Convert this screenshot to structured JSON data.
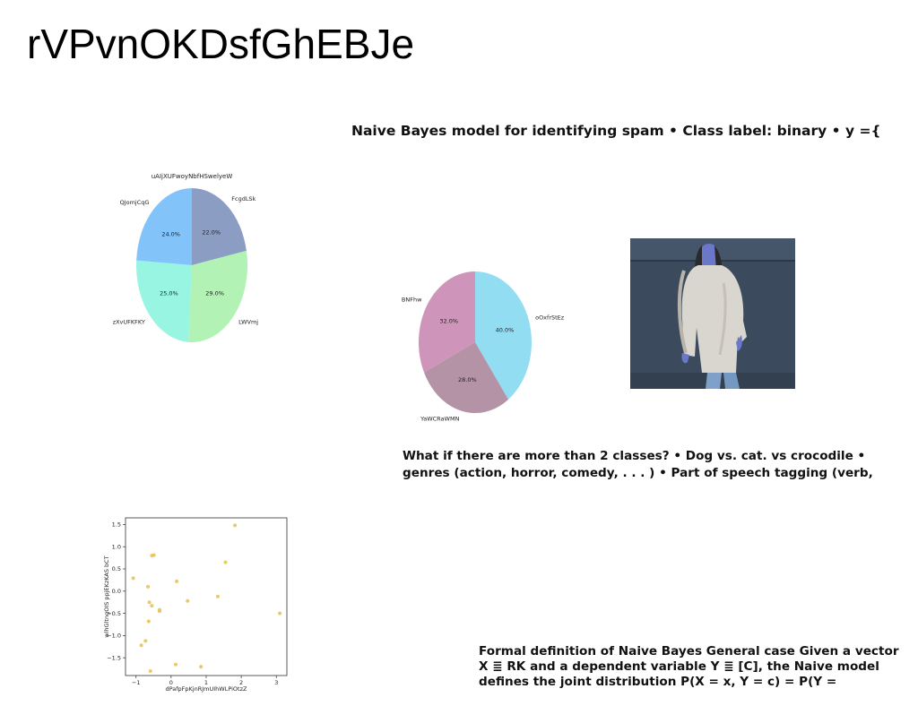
{
  "slide": {
    "title": "rVPvnOKDsfGhEBJe",
    "text_blocks": [
      "Naive Bayes model for identifying spam • Class label: binary • y ={",
      "What if there are more than 2 classes? • Dog vs. cat. vs crocodile • genres (action, horror, comedy, . . . ) • Part of speech tagging (verb,",
      "Formal definition of Naive Bayes General case Given a vector X ≣ RK and a dependent variable Y ≣ [C], the Naive model defines the joint distribution P(X = x, Y = c) = P(Y ="
    ]
  },
  "chart_data": [
    {
      "type": "pie",
      "title": "uAIjXUFwoyNbfHSwelyeW",
      "labels": [
        "FcgdLSk",
        "LWVmj",
        "zXvUFKFKY",
        "QJomjCqG"
      ],
      "values": [
        22.0,
        29.0,
        25.0,
        24.0
      ],
      "pct_labels": [
        "22.0%",
        "29.0%",
        "25.0%",
        "24.0%"
      ],
      "colors": [
        "#8b9dc3",
        "#b2f2b4",
        "#98f5e1",
        "#82c4fa"
      ]
    },
    {
      "type": "pie",
      "title": "",
      "labels": [
        "oOxfrStEz",
        "YaWCRaWMN",
        "BNFhw"
      ],
      "values": [
        40.0,
        28.0,
        32.0
      ],
      "pct_labels": [
        "40.0%",
        "28.0%",
        "32.0%"
      ],
      "colors": [
        "#92ddf2",
        "#b493a7",
        "#cf94b9"
      ]
    },
    {
      "type": "scatter",
      "xlabel": "dPafpFpKjnRJmUIhWLPiOtzZ",
      "ylabel": "wlhGltngOIS ppjEKzKAS bCT",
      "xlim": [
        -1.3,
        3.3
      ],
      "ylim": [
        -1.9,
        1.65
      ],
      "xticks": [
        -1,
        0,
        1,
        2,
        3
      ],
      "yticks": [
        -1.5,
        -1.0,
        -0.5,
        0.0,
        0.5,
        1.0,
        1.5
      ],
      "xtick_labels": [
        "−1",
        "0",
        "1",
        "2",
        "3"
      ],
      "ytick_labels": [
        "−1.5",
        "−1.0",
        "−0.5",
        "0.0",
        "0.5",
        "1.0",
        "1.5"
      ],
      "color": "#e8c35a",
      "points": [
        [
          1.82,
          1.48
        ],
        [
          -0.55,
          0.8
        ],
        [
          -0.49,
          0.81
        ],
        [
          1.55,
          0.65
        ],
        [
          -1.08,
          0.29
        ],
        [
          0.16,
          0.22
        ],
        [
          -0.66,
          0.1
        ],
        [
          1.33,
          -0.12
        ],
        [
          0.47,
          -0.22
        ],
        [
          -0.62,
          -0.25
        ],
        [
          -0.55,
          -0.33
        ],
        [
          -0.33,
          -0.42
        ],
        [
          -0.33,
          -0.45
        ],
        [
          3.1,
          -0.5
        ],
        [
          -0.64,
          -0.68
        ],
        [
          -0.73,
          -1.12
        ],
        [
          -0.85,
          -1.22
        ],
        [
          0.13,
          -1.65
        ],
        [
          0.85,
          -1.7
        ],
        [
          -0.59,
          -1.8
        ]
      ]
    }
  ]
}
